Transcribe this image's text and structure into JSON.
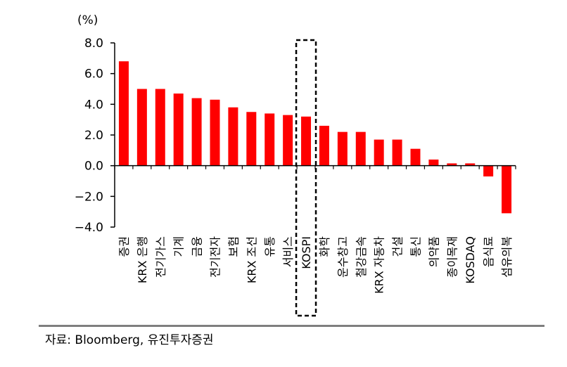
{
  "chart_data": {
    "type": "bar",
    "title": "",
    "ylabel": "(%)",
    "xlabel": "",
    "ylim": [
      -4.0,
      8.0
    ],
    "yticks": [
      "8.0",
      "6.0",
      "4.0",
      "2.0",
      "0.0",
      "-2.0",
      "-4.0"
    ],
    "ytick_values": [
      8,
      6,
      4,
      2,
      0,
      -2,
      -4
    ],
    "categories": [
      "증권",
      "KRX 은행",
      "전기가스",
      "기계",
      "금융",
      "전기전자",
      "보험",
      "KRX 조선",
      "유통",
      "서비스",
      "KOSPI",
      "화학",
      "운수창고",
      "철강금속",
      "KRX 자동차",
      "건설",
      "통신",
      "의약품",
      "종이목재",
      "KOSDAQ",
      "음식료",
      "섬유의복"
    ],
    "values": [
      6.8,
      5.0,
      5.0,
      4.7,
      4.4,
      4.3,
      3.8,
      3.5,
      3.4,
      3.3,
      3.2,
      2.6,
      2.2,
      2.2,
      1.7,
      1.7,
      1.1,
      0.4,
      0.15,
      0.15,
      -0.7,
      -3.1
    ],
    "highlight": "KOSPI",
    "bar_color": "#ff0000",
    "grid": false
  },
  "source": "자료: Bloomberg, 유진투자증권"
}
